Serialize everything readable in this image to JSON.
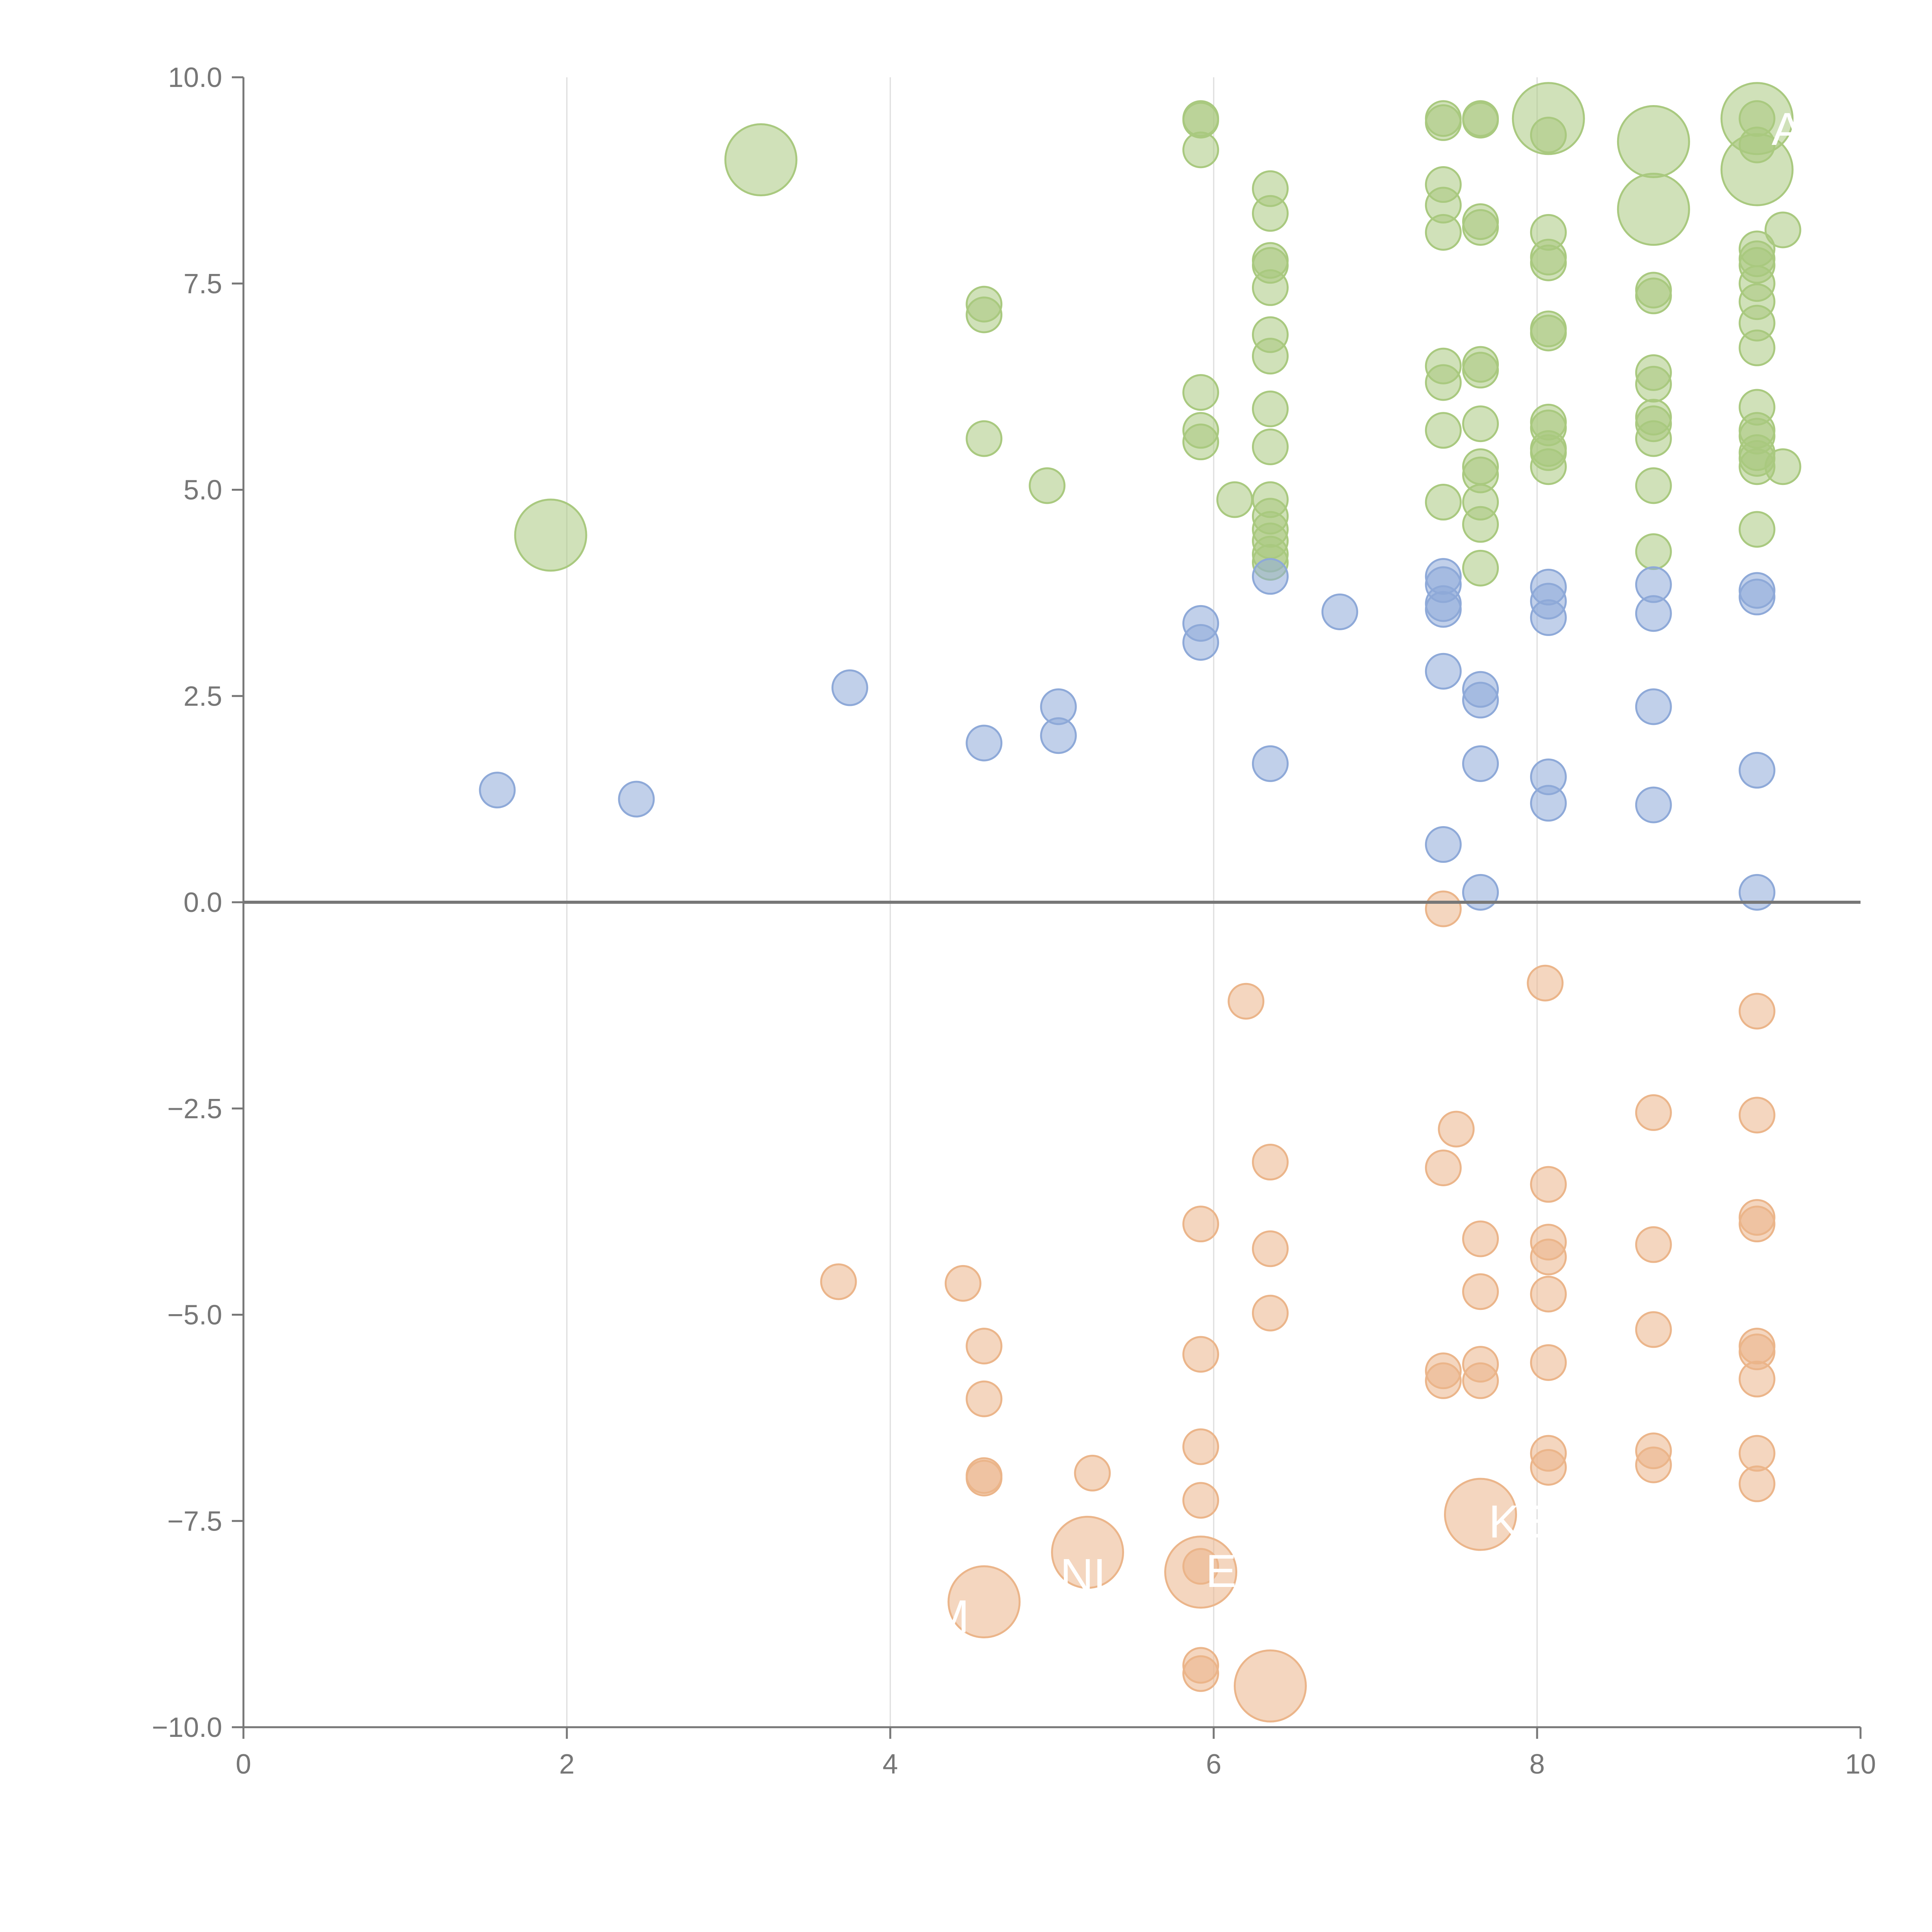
{
  "chart_data": {
    "type": "scatter",
    "title": "",
    "xlabel": "",
    "ylabel": "",
    "xlim": [
      0,
      10
    ],
    "ylim": [
      -10,
      10
    ],
    "x_ticks": [
      0,
      2,
      4,
      6,
      8,
      10
    ],
    "y_ticks": [
      -10,
      -7.5,
      -5,
      -2.5,
      0,
      2.5,
      5,
      7.5,
      10
    ],
    "x_tick_labels": [
      "0",
      "2",
      "4",
      "6",
      "8",
      "10"
    ],
    "y_tick_labels": [
      "−10.0",
      "−7.5",
      "−5.0",
      "−2.5",
      "0.0",
      "2.5",
      "5.0",
      "7.5",
      "10.0"
    ],
    "vertical_gridlines": [
      2,
      4,
      6,
      8
    ],
    "zero_line": 0,
    "marker_sizes": {
      "small": 1,
      "large": 3
    },
    "series": [
      {
        "name": "green",
        "color": "#a9c97f",
        "points": [
          [
            3.2,
            9.0,
            3
          ],
          [
            1.9,
            4.45,
            3
          ],
          [
            4.58,
            7.25,
            1
          ],
          [
            4.58,
            7.12,
            1
          ],
          [
            4.58,
            5.62,
            1
          ],
          [
            4.97,
            5.05,
            1
          ],
          [
            5.92,
            9.5,
            1
          ],
          [
            5.92,
            9.48,
            1
          ],
          [
            5.92,
            9.12,
            1
          ],
          [
            5.92,
            6.18,
            1
          ],
          [
            5.92,
            5.72,
            1
          ],
          [
            5.92,
            5.58,
            1
          ],
          [
            6.13,
            4.88,
            1
          ],
          [
            6.35,
            8.65,
            1
          ],
          [
            6.35,
            8.35,
            1
          ],
          [
            6.35,
            7.78,
            1
          ],
          [
            6.35,
            7.72,
            1
          ],
          [
            6.35,
            7.45,
            1
          ],
          [
            6.35,
            6.88,
            1
          ],
          [
            6.35,
            6.62,
            1
          ],
          [
            6.35,
            5.98,
            1
          ],
          [
            6.35,
            5.52,
            1
          ],
          [
            6.35,
            4.88,
            1
          ],
          [
            6.35,
            4.68,
            1
          ],
          [
            6.35,
            4.52,
            1
          ],
          [
            6.35,
            4.38,
            1
          ],
          [
            6.35,
            4.22,
            1
          ],
          [
            6.35,
            4.12,
            1
          ],
          [
            7.42,
            9.5,
            1
          ],
          [
            7.42,
            9.45,
            1
          ],
          [
            7.42,
            8.7,
            1
          ],
          [
            7.42,
            8.45,
            1
          ],
          [
            7.42,
            8.12,
            1
          ],
          [
            7.42,
            6.5,
            1
          ],
          [
            7.42,
            6.3,
            1
          ],
          [
            7.42,
            5.72,
            1
          ],
          [
            7.42,
            4.85,
            1
          ],
          [
            7.65,
            9.5,
            1
          ],
          [
            7.65,
            9.48,
            1
          ],
          [
            7.65,
            8.25,
            1
          ],
          [
            7.65,
            8.18,
            1
          ],
          [
            7.65,
            6.52,
            1
          ],
          [
            7.65,
            6.45,
            1
          ],
          [
            7.65,
            5.8,
            1
          ],
          [
            7.65,
            5.28,
            1
          ],
          [
            7.65,
            5.18,
            1
          ],
          [
            7.65,
            4.85,
            1
          ],
          [
            7.65,
            4.58,
            1
          ],
          [
            7.65,
            4.05,
            1
          ],
          [
            8.07,
            9.5,
            3
          ],
          [
            8.07,
            9.3,
            1
          ],
          [
            8.07,
            8.12,
            1
          ],
          [
            8.07,
            7.82,
            1
          ],
          [
            8.07,
            7.75,
            1
          ],
          [
            8.07,
            6.95,
            1
          ],
          [
            8.07,
            6.9,
            1
          ],
          [
            8.07,
            5.82,
            1
          ],
          [
            8.07,
            5.75,
            1
          ],
          [
            8.07,
            5.5,
            1
          ],
          [
            8.07,
            5.45,
            1
          ],
          [
            8.07,
            5.28,
            1
          ],
          [
            8.72,
            9.22,
            3
          ],
          [
            8.72,
            8.4,
            3
          ],
          [
            8.72,
            7.42,
            1
          ],
          [
            8.72,
            7.35,
            1
          ],
          [
            8.72,
            6.42,
            1
          ],
          [
            8.72,
            6.28,
            1
          ],
          [
            8.72,
            5.88,
            1
          ],
          [
            8.72,
            5.8,
            1
          ],
          [
            8.72,
            5.62,
            1
          ],
          [
            8.72,
            5.05,
            1
          ],
          [
            8.72,
            4.25,
            1
          ],
          [
            9.36,
            9.5,
            3
          ],
          [
            9.36,
            9.5,
            1
          ],
          [
            9.36,
            9.18,
            1
          ],
          [
            9.36,
            8.88,
            3
          ],
          [
            9.36,
            7.92,
            1
          ],
          [
            9.36,
            7.8,
            1
          ],
          [
            9.36,
            7.72,
            1
          ],
          [
            9.36,
            7.5,
            1
          ],
          [
            9.36,
            7.28,
            1
          ],
          [
            9.36,
            7.02,
            1
          ],
          [
            9.36,
            6.72,
            1
          ],
          [
            9.36,
            6.0,
            1
          ],
          [
            9.36,
            5.72,
            1
          ],
          [
            9.36,
            5.65,
            1
          ],
          [
            9.36,
            5.45,
            1
          ],
          [
            9.36,
            5.38,
            1
          ],
          [
            9.36,
            5.28,
            1
          ],
          [
            9.36,
            4.52,
            1
          ],
          [
            9.52,
            8.15,
            1
          ],
          [
            9.52,
            5.28,
            1
          ]
        ]
      },
      {
        "name": "blue",
        "color": "#8ea9d8",
        "points": [
          [
            1.57,
            1.36,
            1
          ],
          [
            2.43,
            1.25,
            1
          ],
          [
            3.75,
            2.6,
            1
          ],
          [
            4.58,
            1.93,
            1
          ],
          [
            5.04,
            2.37,
            1
          ],
          [
            5.04,
            2.02,
            1
          ],
          [
            5.92,
            3.38,
            1
          ],
          [
            5.92,
            3.15,
            1
          ],
          [
            6.35,
            3.95,
            1
          ],
          [
            6.35,
            1.68,
            1
          ],
          [
            6.78,
            3.52,
            1
          ],
          [
            7.42,
            3.95,
            1
          ],
          [
            7.42,
            3.85,
            1
          ],
          [
            7.42,
            3.62,
            1
          ],
          [
            7.42,
            3.55,
            1
          ],
          [
            7.42,
            2.8,
            1
          ],
          [
            7.42,
            0.7,
            1
          ],
          [
            7.65,
            2.58,
            1
          ],
          [
            7.65,
            2.45,
            1
          ],
          [
            7.65,
            1.68,
            1
          ],
          [
            7.65,
            0.12,
            1
          ],
          [
            8.07,
            3.82,
            1
          ],
          [
            8.07,
            3.65,
            1
          ],
          [
            8.07,
            3.45,
            1
          ],
          [
            8.07,
            1.52,
            1
          ],
          [
            8.07,
            1.2,
            1
          ],
          [
            8.72,
            3.85,
            1
          ],
          [
            8.72,
            3.5,
            1
          ],
          [
            8.72,
            2.37,
            1
          ],
          [
            8.72,
            1.18,
            1
          ],
          [
            9.36,
            3.78,
            1
          ],
          [
            9.36,
            3.7,
            1
          ],
          [
            9.36,
            1.6,
            1
          ],
          [
            9.36,
            0.12,
            1
          ]
        ]
      },
      {
        "name": "orange",
        "color": "#ebb58a",
        "points": [
          [
            3.68,
            -4.6,
            1
          ],
          [
            4.45,
            -4.62,
            1
          ],
          [
            4.58,
            -5.38,
            1
          ],
          [
            4.58,
            -6.02,
            1
          ],
          [
            4.58,
            -6.95,
            1
          ],
          [
            4.58,
            -6.98,
            1
          ],
          [
            4.58,
            -8.48,
            3
          ],
          [
            5.25,
            -6.92,
            1
          ],
          [
            5.22,
            -7.88,
            3
          ],
          [
            5.92,
            -3.9,
            1
          ],
          [
            5.92,
            -5.48,
            1
          ],
          [
            5.92,
            -6.6,
            1
          ],
          [
            5.92,
            -7.25,
            1
          ],
          [
            5.92,
            -8.05,
            1
          ],
          [
            5.92,
            -8.12,
            3
          ],
          [
            5.92,
            -9.25,
            1
          ],
          [
            5.92,
            -9.35,
            1
          ],
          [
            6.2,
            -1.2,
            1
          ],
          [
            6.35,
            -3.15,
            1
          ],
          [
            6.35,
            -4.2,
            1
          ],
          [
            6.35,
            -4.98,
            1
          ],
          [
            6.35,
            -9.5,
            3
          ],
          [
            7.42,
            -0.08,
            1
          ],
          [
            7.42,
            -3.22,
            1
          ],
          [
            7.5,
            -2.75,
            1
          ],
          [
            7.42,
            -5.68,
            1
          ],
          [
            7.42,
            -5.8,
            1
          ],
          [
            7.65,
            -4.08,
            1
          ],
          [
            7.65,
            -4.72,
            1
          ],
          [
            7.65,
            -5.6,
            1
          ],
          [
            7.65,
            -5.8,
            1
          ],
          [
            7.65,
            -7.42,
            3
          ],
          [
            8.05,
            -0.98,
            1
          ],
          [
            8.07,
            -3.42,
            1
          ],
          [
            8.07,
            -4.12,
            1
          ],
          [
            8.07,
            -4.3,
            1
          ],
          [
            8.07,
            -4.75,
            1
          ],
          [
            8.07,
            -5.58,
            1
          ],
          [
            8.07,
            -6.68,
            1
          ],
          [
            8.07,
            -6.85,
            1
          ],
          [
            8.72,
            -2.55,
            1
          ],
          [
            8.72,
            -4.15,
            1
          ],
          [
            8.72,
            -5.18,
            1
          ],
          [
            8.72,
            -6.65,
            1
          ],
          [
            8.72,
            -6.82,
            1
          ],
          [
            9.36,
            -1.32,
            1
          ],
          [
            9.36,
            -2.58,
            1
          ],
          [
            9.36,
            -3.82,
            1
          ],
          [
            9.36,
            -3.9,
            1
          ],
          [
            9.36,
            -5.38,
            1
          ],
          [
            9.36,
            -5.45,
            1
          ],
          [
            9.36,
            -5.78,
            1
          ],
          [
            9.36,
            -6.68,
            1
          ],
          [
            9.36,
            -7.05,
            1
          ]
        ]
      }
    ],
    "annotations": [
      {
        "text": "AF",
        "x": 9.45,
        "y": 9.18
      },
      {
        "text": "KE",
        "x": 7.7,
        "y": -7.7
      },
      {
        "text": "NL",
        "x": 5.05,
        "y": -8.35
      },
      {
        "text": "ENS",
        "x": 5.95,
        "y": -8.3
      },
      {
        "text": "M",
        "x": 4.25,
        "y": -8.85
      }
    ]
  }
}
